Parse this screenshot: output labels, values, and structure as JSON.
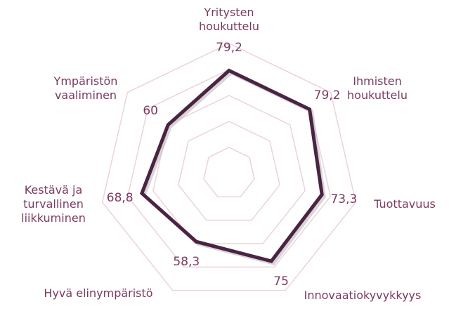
{
  "chart_data": {
    "type": "radar",
    "categories": [
      "Yritysten houkuttelu",
      "Ihmisten houkuttelu",
      "Tuottavuus",
      "Innovaatiokyvykkyys",
      "Hyvä elinympäristö",
      "Kestävä ja turvallinen liikkuminen",
      "Ympäristön vaaliminen"
    ],
    "series": [
      {
        "color": "#4b2343",
        "values": [
          79.2,
          79.2,
          73.3,
          75,
          58.3,
          68.8,
          60
        ],
        "value_labels": [
          "79,2",
          "79,2",
          "73,3",
          "75",
          "58,3",
          "68,8",
          "60"
        ]
      }
    ],
    "rlim": [
      0,
      100
    ],
    "rticks": [
      20,
      40,
      60,
      80,
      100
    ],
    "grid": true,
    "grid_color": "#ecd3da"
  }
}
